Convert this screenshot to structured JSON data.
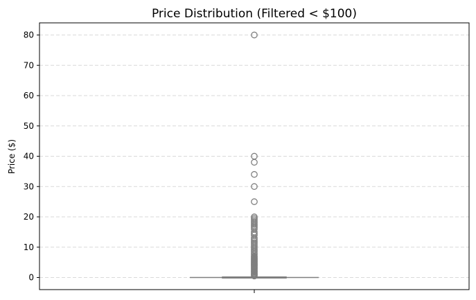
{
  "chart_data": {
    "type": "box",
    "title": "Price Distribution (Filtered < $100)",
    "xlabel": "",
    "ylabel": "Price ($)",
    "ylim": [
      -4,
      84
    ],
    "yticks": [
      0,
      10,
      20,
      30,
      40,
      50,
      60,
      70,
      80
    ],
    "grid": "y-dashed",
    "box": {
      "q1": 0,
      "median": 0,
      "q3": 0,
      "whisker_low": 0,
      "whisker_high": 0
    },
    "outliers": [
      0.5,
      0.8,
      1,
      1.2,
      1.5,
      1.8,
      2,
      2.2,
      2.5,
      2.8,
      3,
      3.3,
      3.5,
      3.8,
      4,
      4.3,
      4.5,
      4.8,
      5,
      5.3,
      5.5,
      5.8,
      6,
      6.3,
      6.5,
      6.8,
      7,
      7.5,
      8,
      8.5,
      9,
      9.5,
      10,
      10.5,
      11,
      11.5,
      12,
      12.5,
      13,
      14,
      14.5,
      15,
      16,
      16.5,
      17,
      17.5,
      18,
      18.5,
      19,
      19.5,
      20,
      25,
      30,
      34,
      38,
      40,
      80
    ],
    "colors": {
      "box_line": "#7f7f7f",
      "grid": "#d9d9d9"
    }
  }
}
